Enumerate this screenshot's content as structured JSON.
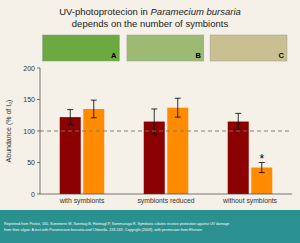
{
  "chart_data": {
    "type": "bar",
    "title": "UV-photoprotecion in ",
    "title_italic": "Paramecium bursaria",
    "subtitle": "depends on the number of symbionts",
    "categories": [
      "with symbionts",
      "symbionts reduced",
      "without symbionts"
    ],
    "series": [
      {
        "color": "#8B0000",
        "values": [
          122,
          115,
          115
        ],
        "errors": [
          12,
          20,
          13
        ]
      },
      {
        "color": "#FF8C00",
        "values": [
          135,
          137,
          42
        ],
        "errors": [
          14,
          15,
          8
        ]
      }
    ],
    "ylabel": "Abundance (% of I₀)",
    "ylim": [
      0,
      200
    ],
    "yticks": [
      0,
      50,
      100,
      150,
      200
    ],
    "grid": false,
    "reference_line": 100,
    "annotations": [
      {
        "text": "*",
        "x": "without symbionts",
        "series": 1,
        "y": 53
      }
    ],
    "images": [
      {
        "label": "A",
        "color": "#6aaa40"
      },
      {
        "label": "B",
        "color": "#9dba72"
      },
      {
        "label": "C",
        "color": "#c8c090"
      }
    ],
    "background": "#f5f0e8",
    "footer": {
      "text": "Reprinted from Protist, 160, Summerer M, Sonntag B, Hörtnagl P, Sommaruga R, Symbiotic ciliates receive protection against UV damage\nfrom their algae: A test with Paramecium bursaria and Chlorella. 233-243. Copyright (2009), with permission from Elsevier",
      "color": "#2a9090"
    }
  }
}
